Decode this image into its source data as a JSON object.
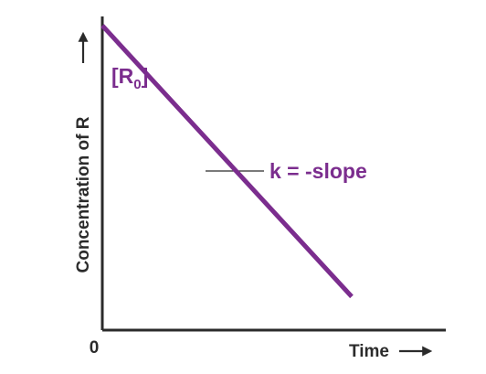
{
  "chart_data": {
    "type": "line",
    "xlabel": "Time",
    "ylabel": "Concentration of R",
    "x_origin_label": "0",
    "series": [
      {
        "x": [
          0,
          5.3
        ],
        "y": [
          10,
          1.1
        ],
        "color": "#7b2d8e"
      }
    ],
    "xlim": [
      0,
      7.3
    ],
    "ylim": [
      0,
      10.3
    ],
    "grid": false,
    "annotations": {
      "intercept": {
        "open": "[R",
        "subscript": "0",
        "close": "]"
      },
      "slope": "k = -slope"
    },
    "colors": {
      "line": "#7b2d8e",
      "axis": "#2b2b2b"
    },
    "axis_arrows": true
  }
}
